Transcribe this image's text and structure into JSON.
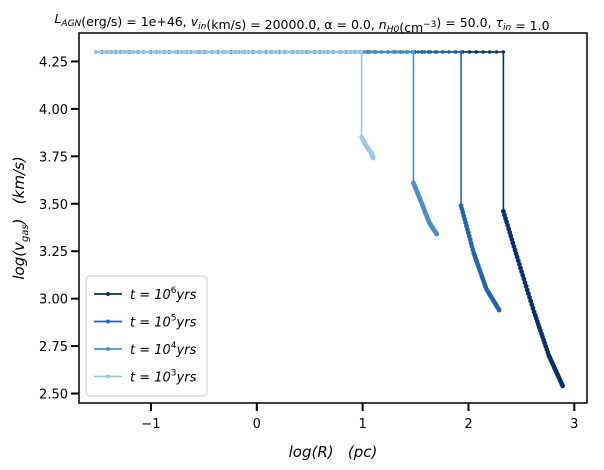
{
  "chart_data": {
    "type": "line",
    "title_parts": [
      {
        "k": "L",
        "sub": "AGN"
      },
      {
        "k": "(erg/s) = 1e+46, "
      },
      {
        "k": "v",
        "sub": "in"
      },
      {
        "k": "(km/s) = 20000.0, α = 0.0, "
      },
      {
        "k": "n",
        "sub": "H0"
      },
      {
        "k": "(cm"
      },
      {
        "k": "",
        "sup": "−3"
      },
      {
        "k": ") = 50.0, "
      },
      {
        "k": "τ",
        "sub": "in"
      },
      {
        "k": " = 1.0"
      }
    ],
    "xlabel": "log(R)   (pc)",
    "ylabel": "log(v",
    "ylabel_sub": "gas",
    "ylabel_tail": ")   (km/s)",
    "xlim": [
      -1.68,
      3.12
    ],
    "ylim": [
      2.45,
      4.4
    ],
    "xticks": [
      -1,
      0,
      1,
      2,
      3
    ],
    "xtick_labels": [
      "−1",
      "0",
      "1",
      "2",
      "3"
    ],
    "yticks": [
      2.5,
      2.75,
      3.0,
      3.25,
      3.5,
      3.75,
      4.0,
      4.25
    ],
    "ytick_labels": [
      "2.50",
      "2.75",
      "3.00",
      "3.25",
      "3.50",
      "3.75",
      "4.00",
      "4.25"
    ],
    "grid": false,
    "legend_position": "lower-left",
    "series": [
      {
        "name_base": "t = 10",
        "name_exp": "6",
        "name_unit": "yrs",
        "color": "#08306b",
        "plateau": {
          "x": [
            -1.52,
            2.33
          ],
          "y": 4.3
        },
        "drop": {
          "x": 2.33,
          "y": [
            4.3,
            3.46
          ]
        },
        "tail": {
          "x": [
            2.33,
            2.47,
            2.62,
            2.76,
            2.89
          ],
          "y": [
            3.46,
            3.2,
            2.93,
            2.7,
            2.54
          ]
        }
      },
      {
        "name_base": "t = 10",
        "name_exp": "5",
        "name_unit": "yrs",
        "color": "#2166ac",
        "plateau": {
          "x": [
            -1.52,
            1.93
          ],
          "y": 4.3
        },
        "drop": {
          "x": 1.93,
          "y": [
            4.3,
            3.49
          ]
        },
        "tail": {
          "x": [
            1.93,
            2.05,
            2.17,
            2.29
          ],
          "y": [
            3.49,
            3.24,
            3.05,
            2.94
          ]
        }
      },
      {
        "name_base": "t = 10",
        "name_exp": "4",
        "name_unit": "yrs",
        "color": "#4a90c8",
        "plateau": {
          "x": [
            -1.52,
            1.48
          ],
          "y": 4.3
        },
        "drop": {
          "x": 1.48,
          "y": [
            4.3,
            3.61
          ]
        },
        "tail": {
          "x": [
            1.48,
            1.56,
            1.63,
            1.7
          ],
          "y": [
            3.61,
            3.5,
            3.4,
            3.34
          ]
        }
      },
      {
        "name_base": "t = 10",
        "name_exp": "3",
        "name_unit": "yrs",
        "color": "#9ecae1",
        "plateau": {
          "x": [
            -1.52,
            0.99
          ],
          "y": 4.3
        },
        "drop": {
          "x": 0.99,
          "y": [
            4.3,
            3.85
          ]
        },
        "tail": {
          "x": [
            0.99,
            1.04,
            1.08,
            1.1
          ],
          "y": [
            3.85,
            3.8,
            3.77,
            3.74
          ]
        }
      }
    ]
  }
}
